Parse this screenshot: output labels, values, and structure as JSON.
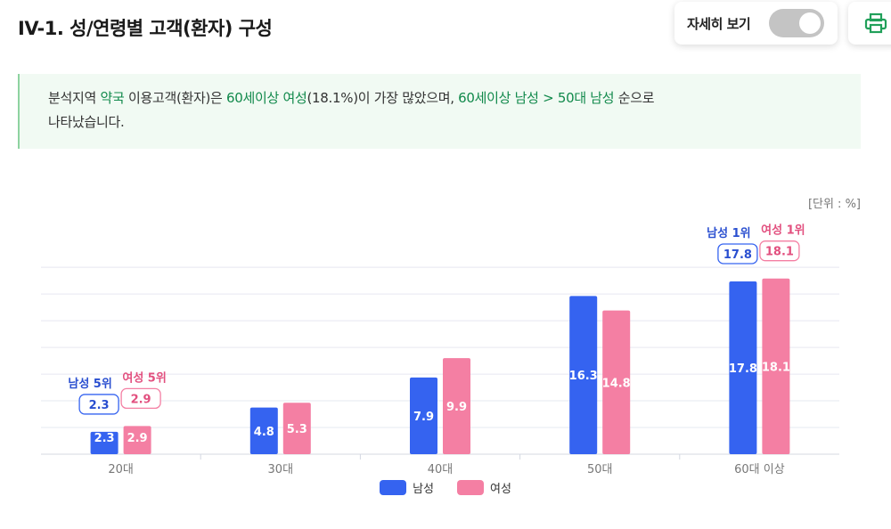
{
  "header": {
    "title": "IV-1. 성/연령별 고객(환자) 구성",
    "toggle_label": "자세히 보기",
    "toggle_on": false
  },
  "summary": {
    "part1": "분석지역 ",
    "region": "약국",
    "part2": " 이용고객(환자)은 ",
    "top1": "60세이상 여성",
    "part3": "(18.1%)이 가장 많았으며, ",
    "top2": "60세이상 남성",
    "sep": " > ",
    "top3": "50대 남성",
    "part4": " 순으로",
    "line2": "나타났습니다."
  },
  "unit": "[단위 : %]",
  "chart_data": {
    "type": "bar",
    "categories": [
      "20대",
      "30대",
      "40대",
      "50대",
      "60대 이상"
    ],
    "series": [
      {
        "name": "남성",
        "values": [
          2.3,
          4.8,
          7.9,
          16.3,
          17.8
        ],
        "color": "#3563f0"
      },
      {
        "name": "여성",
        "values": [
          2.9,
          5.3,
          9.9,
          14.8,
          18.1
        ],
        "color": "#f47fa3"
      }
    ],
    "ylim": [
      0,
      20
    ],
    "grid": true,
    "legend": "bottom-center",
    "annotations": [
      {
        "category": "20대",
        "series": "남성",
        "rank_label": "남성 5위",
        "value_label": "2.3"
      },
      {
        "category": "20대",
        "series": "여성",
        "rank_label": "여성 5위",
        "value_label": "2.9"
      },
      {
        "category": "60대 이상",
        "series": "남성",
        "rank_label": "남성 1위",
        "value_label": "17.8"
      },
      {
        "category": "60대 이상",
        "series": "여성",
        "rank_label": "여성 1위",
        "value_label": "18.1"
      }
    ]
  },
  "colors": {
    "male": "#3563f0",
    "female": "#f47fa3",
    "accent": "#11894b"
  }
}
